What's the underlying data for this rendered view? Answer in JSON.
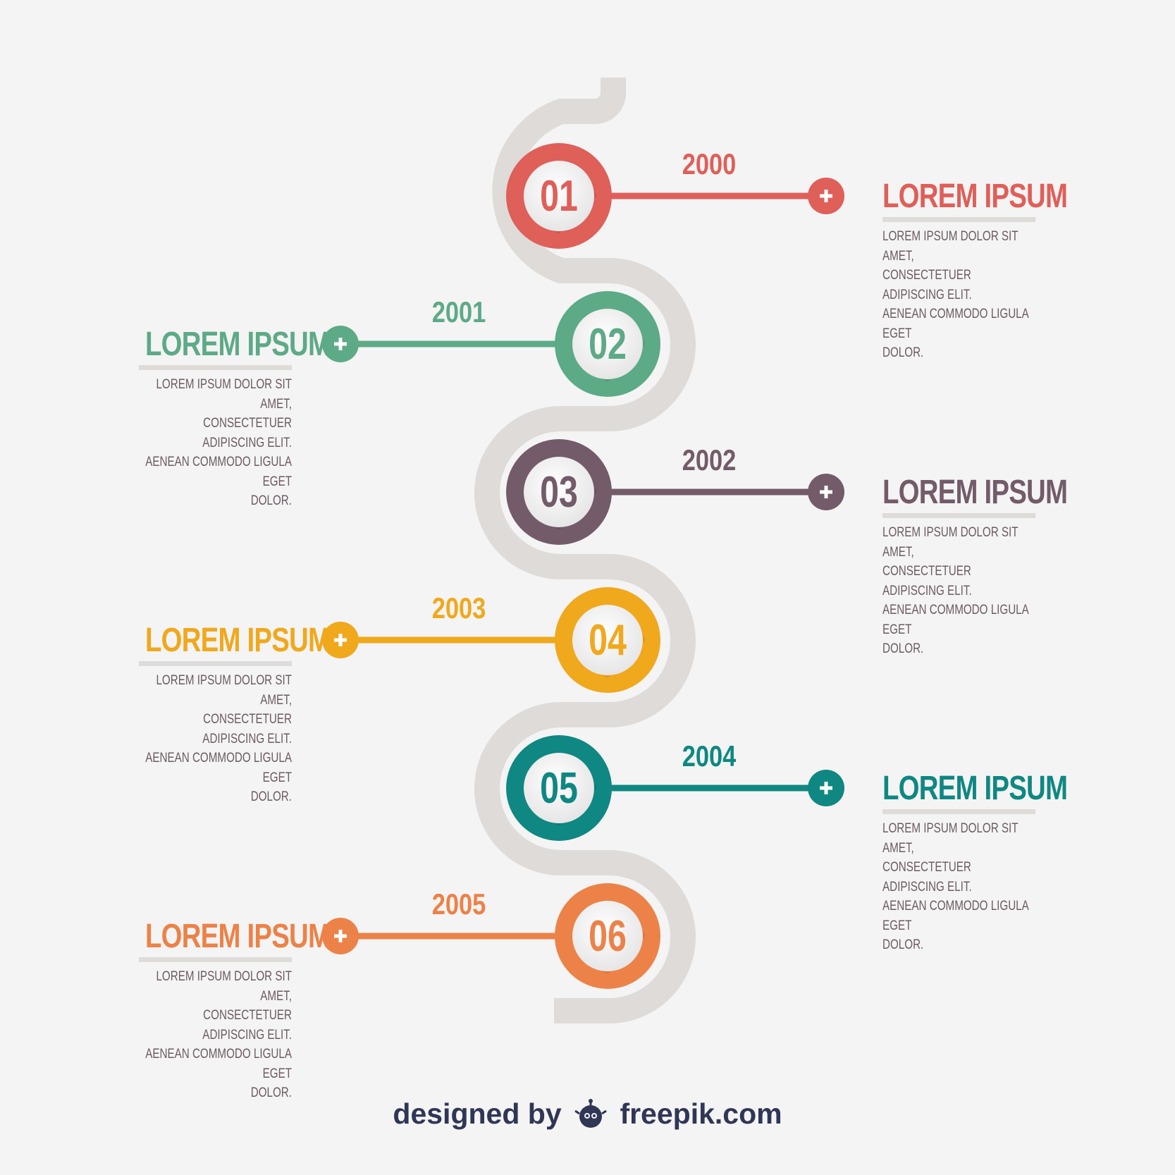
{
  "diagram": {
    "track_color": "#dedbd8",
    "inner_circle_color": "#efefef",
    "milestones": [
      {
        "number": "01",
        "year": "2000",
        "title": "LOREM IPSUM",
        "description": "LOREM IPSUM DOLOR SIT AMET,\nCONSECTETUER ADIPISCING ELIT.\nAENEAN COMMODO LIGULA EGET\nDOLOR.",
        "color": "#df5f59",
        "side": "right",
        "plus_icon": "plus-icon"
      },
      {
        "number": "02",
        "year": "2001",
        "title": "LOREM IPSUM",
        "description": "LOREM IPSUM DOLOR SIT AMET,\nCONSECTETUER ADIPISCING ELIT.\nAENEAN COMMODO LIGULA EGET\nDOLOR.",
        "color": "#5daa86",
        "side": "left",
        "plus_icon": "plus-icon"
      },
      {
        "number": "03",
        "year": "2002",
        "title": "LOREM IPSUM",
        "description": "LOREM IPSUM DOLOR SIT AMET,\nCONSECTETUER ADIPISCING ELIT.\nAENEAN COMMODO LIGULA EGET\nDOLOR.",
        "color": "#735b6a",
        "side": "right",
        "plus_icon": "plus-icon"
      },
      {
        "number": "04",
        "year": "2003",
        "title": "LOREM IPSUM",
        "description": "LOREM IPSUM DOLOR SIT AMET,\nCONSECTETUER ADIPISCING ELIT.\nAENEAN COMMODO LIGULA EGET\nDOLOR.",
        "color": "#f0a81d",
        "side": "left",
        "plus_icon": "plus-icon"
      },
      {
        "number": "05",
        "year": "2004",
        "title": "LOREM IPSUM",
        "description": "LOREM IPSUM DOLOR SIT AMET,\nCONSECTETUER ADIPISCING ELIT.\nAENEAN COMMODO LIGULA EGET\nDOLOR.",
        "color": "#0f8782",
        "side": "right",
        "plus_icon": "plus-icon"
      },
      {
        "number": "06",
        "year": "2005",
        "title": "LOREM IPSUM",
        "description": "LOREM IPSUM DOLOR SIT AMET,\nCONSECTETUER ADIPISCING ELIT.\nAENEAN COMMODO LIGULA EGET\nDOLOR.",
        "color": "#ec8248",
        "side": "left",
        "plus_icon": "plus-icon"
      }
    ]
  },
  "credit": {
    "designed_by": "designed by",
    "site": "freepik.com",
    "logo_icon": "freepik-logo-icon",
    "color": "#2f3656"
  }
}
